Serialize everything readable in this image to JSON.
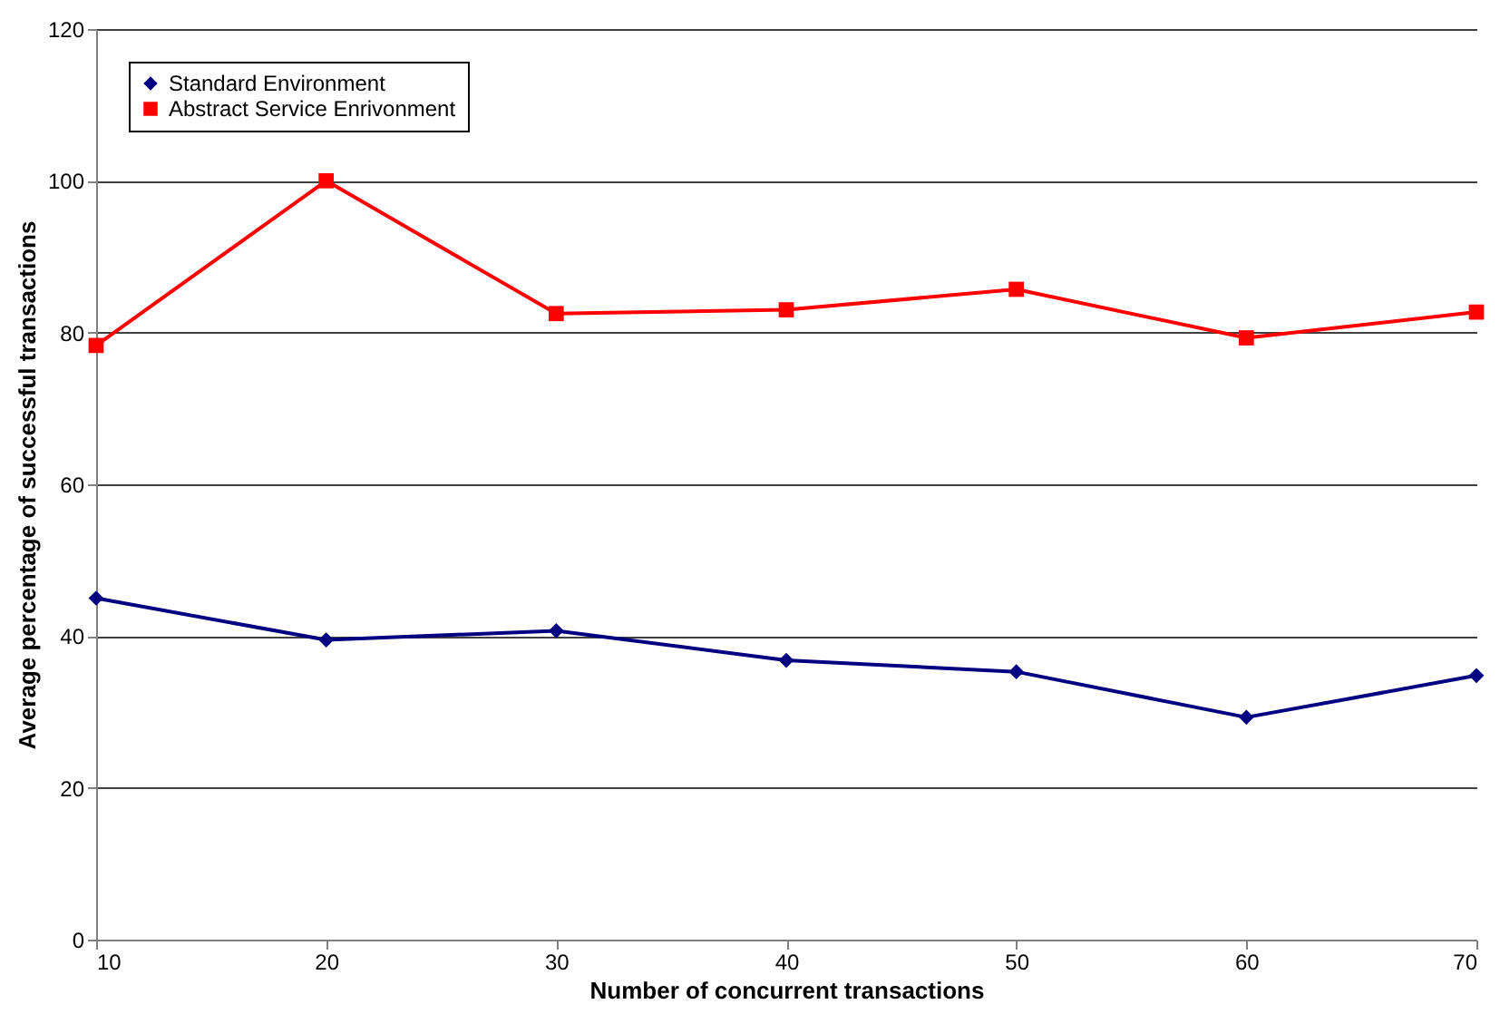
{
  "chart_data": {
    "type": "line",
    "xlabel": "Number of concurrent transactions",
    "ylabel": "Average percentage of successful transactions",
    "x": [
      10,
      20,
      30,
      40,
      50,
      60,
      70
    ],
    "xlim": [
      10,
      70
    ],
    "xticks": [
      10,
      20,
      30,
      40,
      50,
      60,
      70
    ],
    "ylim": [
      0,
      120
    ],
    "yticks": [
      0,
      20,
      40,
      60,
      80,
      100,
      120
    ],
    "grid": "y",
    "legend": "top left",
    "line_style": "solid",
    "series": [
      {
        "name": "Standard Environment",
        "color": "#000080",
        "marker": "diamond",
        "values": [
          45.0,
          39.5,
          40.7,
          36.8,
          35.3,
          29.3,
          34.8
        ]
      },
      {
        "name": "Abstract Service Enrivonment",
        "color": "#ff0000",
        "marker": "square",
        "values": [
          78.3,
          100,
          82.5,
          83.0,
          85.7,
          79.3,
          82.7
        ]
      }
    ]
  }
}
